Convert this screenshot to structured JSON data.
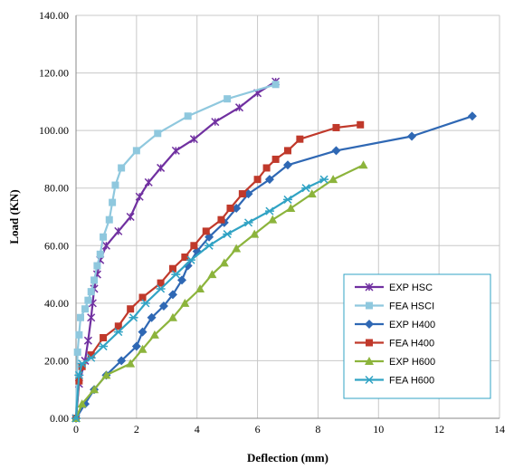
{
  "chart_data": {
    "type": "line",
    "xlabel": "Deflection (mm)",
    "ylabel": "Load (KN)",
    "xlim": [
      0,
      14
    ],
    "ylim": [
      0,
      140
    ],
    "x_ticks": [
      0,
      2,
      4,
      6,
      8,
      10,
      12,
      14
    ],
    "y_ticks": [
      "0.00",
      "20.00",
      "40.00",
      "60.00",
      "80.00",
      "100.00",
      "120.00",
      "140.00"
    ],
    "grid": true,
    "legend_position": "lower-right",
    "series": [
      {
        "name": "EXP HSC",
        "color": "#7030a0",
        "marker": "x-plus",
        "points": [
          [
            0,
            0
          ],
          [
            0.1,
            12
          ],
          [
            0.3,
            20
          ],
          [
            0.4,
            27
          ],
          [
            0.5,
            35
          ],
          [
            0.55,
            40
          ],
          [
            0.6,
            45
          ],
          [
            0.7,
            50
          ],
          [
            0.8,
            55
          ],
          [
            1.0,
            60
          ],
          [
            1.4,
            65
          ],
          [
            1.8,
            70
          ],
          [
            2.1,
            77
          ],
          [
            2.4,
            82
          ],
          [
            2.8,
            87
          ],
          [
            3.3,
            93
          ],
          [
            3.9,
            97
          ],
          [
            4.6,
            103
          ],
          [
            5.4,
            108
          ],
          [
            6.0,
            113
          ],
          [
            6.6,
            117
          ]
        ]
      },
      {
        "name": "FEA HSCI",
        "color": "#8fc8de",
        "marker": "square",
        "points": [
          [
            0,
            0
          ],
          [
            0.05,
            23
          ],
          [
            0.1,
            29
          ],
          [
            0.15,
            35
          ],
          [
            0.3,
            38
          ],
          [
            0.4,
            41
          ],
          [
            0.5,
            44
          ],
          [
            0.6,
            48
          ],
          [
            0.7,
            53
          ],
          [
            0.8,
            57
          ],
          [
            0.9,
            63
          ],
          [
            1.1,
            69
          ],
          [
            1.2,
            75
          ],
          [
            1.3,
            81
          ],
          [
            1.5,
            87
          ],
          [
            2.0,
            93
          ],
          [
            2.7,
            99
          ],
          [
            3.7,
            105
          ],
          [
            5.0,
            111
          ],
          [
            6.6,
            116
          ]
        ]
      },
      {
        "name": "EXP H400",
        "color": "#2f68b4",
        "marker": "diamond",
        "points": [
          [
            0,
            0
          ],
          [
            0.3,
            5
          ],
          [
            0.6,
            10
          ],
          [
            1.0,
            15
          ],
          [
            1.5,
            20
          ],
          [
            2.0,
            25
          ],
          [
            2.2,
            30
          ],
          [
            2.5,
            35
          ],
          [
            2.9,
            39
          ],
          [
            3.2,
            43
          ],
          [
            3.5,
            48
          ],
          [
            3.7,
            53
          ],
          [
            4.0,
            58
          ],
          [
            4.4,
            63
          ],
          [
            4.9,
            68
          ],
          [
            5.3,
            73
          ],
          [
            5.7,
            78
          ],
          [
            6.4,
            83
          ],
          [
            7.0,
            88
          ],
          [
            8.6,
            93
          ],
          [
            11.1,
            98
          ],
          [
            13.1,
            105
          ]
        ]
      },
      {
        "name": "FEA H400",
        "color": "#c0392b",
        "marker": "square",
        "points": [
          [
            0,
            0
          ],
          [
            0.1,
            13
          ],
          [
            0.2,
            18
          ],
          [
            0.5,
            22
          ],
          [
            0.9,
            28
          ],
          [
            1.4,
            32
          ],
          [
            1.8,
            38
          ],
          [
            2.2,
            42
          ],
          [
            2.8,
            47
          ],
          [
            3.2,
            52
          ],
          [
            3.6,
            56
          ],
          [
            3.9,
            60
          ],
          [
            4.3,
            65
          ],
          [
            4.8,
            69
          ],
          [
            5.1,
            73
          ],
          [
            5.5,
            78
          ],
          [
            6.0,
            83
          ],
          [
            6.3,
            87
          ],
          [
            6.6,
            90
          ],
          [
            7.0,
            93
          ],
          [
            7.4,
            97
          ],
          [
            8.6,
            101
          ],
          [
            9.4,
            102
          ]
        ]
      },
      {
        "name": "EXP H600",
        "color": "#8cb43c",
        "marker": "triangle",
        "points": [
          [
            0,
            0
          ],
          [
            0.2,
            5
          ],
          [
            0.6,
            10
          ],
          [
            1.0,
            15
          ],
          [
            1.8,
            19
          ],
          [
            2.2,
            24
          ],
          [
            2.6,
            29
          ],
          [
            3.2,
            35
          ],
          [
            3.6,
            40
          ],
          [
            4.1,
            45
          ],
          [
            4.5,
            50
          ],
          [
            4.9,
            54
          ],
          [
            5.3,
            59
          ],
          [
            5.9,
            64
          ],
          [
            6.5,
            69
          ],
          [
            7.1,
            73
          ],
          [
            7.8,
            78
          ],
          [
            8.5,
            83
          ],
          [
            9.5,
            88
          ]
        ]
      },
      {
        "name": "FEA H600",
        "color": "#31a3c4",
        "marker": "asterisk",
        "points": [
          [
            0,
            0
          ],
          [
            0.1,
            15
          ],
          [
            0.2,
            19
          ],
          [
            0.5,
            21
          ],
          [
            0.9,
            25
          ],
          [
            1.4,
            30
          ],
          [
            1.9,
            35
          ],
          [
            2.3,
            40
          ],
          [
            2.8,
            45
          ],
          [
            3.3,
            50
          ],
          [
            3.8,
            55
          ],
          [
            4.4,
            60
          ],
          [
            5.0,
            64
          ],
          [
            5.7,
            68
          ],
          [
            6.4,
            72
          ],
          [
            7.0,
            76
          ],
          [
            7.6,
            80
          ],
          [
            8.2,
            83
          ]
        ]
      }
    ]
  }
}
